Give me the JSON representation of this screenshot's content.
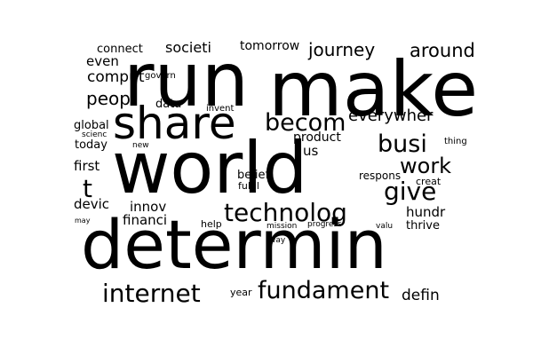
{
  "text_color": "#000000",
  "background_color": "#ffffff",
  "words": [
    {
      "text": "run"
    },
    {
      "text": "make"
    },
    {
      "text": "share"
    },
    {
      "text": "world"
    },
    {
      "text": "determin"
    },
    {
      "text": "technolog"
    },
    {
      "text": "internet"
    },
    {
      "text": "fundament"
    },
    {
      "text": "becom"
    },
    {
      "text": "busi"
    },
    {
      "text": "work"
    },
    {
      "text": "give"
    },
    {
      "text": "journey"
    },
    {
      "text": "around"
    },
    {
      "text": "everywher"
    },
    {
      "text": "t"
    },
    {
      "text": "connect"
    },
    {
      "text": "societi"
    },
    {
      "text": "tomorrow"
    },
    {
      "text": "even"
    },
    {
      "text": "comput"
    },
    {
      "text": "govern"
    },
    {
      "text": "peopl"
    },
    {
      "text": "data"
    },
    {
      "text": "invent"
    },
    {
      "text": "global"
    },
    {
      "text": "scienc"
    },
    {
      "text": "today"
    },
    {
      "text": "new"
    },
    {
      "text": "product"
    },
    {
      "text": "us"
    },
    {
      "text": "thing"
    },
    {
      "text": "first"
    },
    {
      "text": "belief"
    },
    {
      "text": "fulfil"
    },
    {
      "text": "respons"
    },
    {
      "text": "creat"
    },
    {
      "text": "devic"
    },
    {
      "text": "innov"
    },
    {
      "text": "financi"
    },
    {
      "text": "help"
    },
    {
      "text": "mission"
    },
    {
      "text": "progress"
    },
    {
      "text": "valu"
    },
    {
      "text": "thrive"
    },
    {
      "text": "hundr"
    },
    {
      "text": "may"
    },
    {
      "text": "way"
    },
    {
      "text": "year"
    },
    {
      "text": "defin"
    }
  ]
}
